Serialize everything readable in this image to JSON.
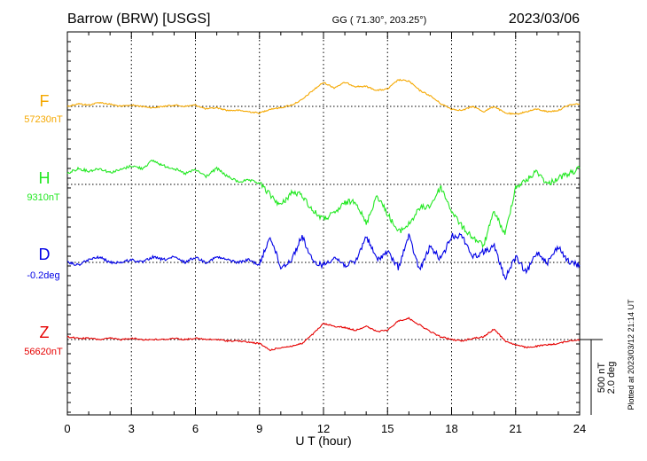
{
  "header": {
    "station": "Barrow (BRW)  [USGS]",
    "coords": "GG ( 71.30°, 203.25°)",
    "date": "2023/03/06"
  },
  "footer": {
    "plotted": "Plotted at 2023/03/12 21:14 UT"
  },
  "scale": {
    "nt": "500 nT",
    "deg": "2.0 deg"
  },
  "chart_data": {
    "type": "line",
    "xlabel": "U T (hour)",
    "xlim": [
      0,
      24
    ],
    "xticks": [
      0,
      3,
      6,
      9,
      12,
      15,
      18,
      21,
      24
    ],
    "xtick_labels": [
      "0",
      "3",
      "6",
      "9",
      "12",
      "15",
      "18",
      "21",
      "24"
    ],
    "grid": true,
    "series": [
      {
        "name": "F",
        "baseline_label": "57230nT",
        "color": "#f5a800",
        "x": [
          0,
          0.5,
          1,
          1.5,
          2,
          2.5,
          3,
          3.5,
          4,
          4.5,
          5,
          5.5,
          6,
          6.5,
          7,
          7.5,
          8,
          8.5,
          9,
          9.5,
          10,
          10.5,
          11,
          11.5,
          12,
          12.5,
          13,
          13.5,
          14,
          14.5,
          15,
          15.5,
          16,
          16.5,
          17,
          17.5,
          18,
          18.5,
          19,
          19.5,
          20,
          20.5,
          21,
          21.5,
          22,
          22.5,
          23,
          23.5,
          24
        ],
        "y": [
          0,
          10,
          5,
          15,
          8,
          0,
          5,
          0,
          -5,
          0,
          5,
          0,
          5,
          -10,
          -5,
          -15,
          -15,
          -20,
          -25,
          -10,
          -5,
          5,
          25,
          60,
          90,
          70,
          90,
          75,
          75,
          60,
          65,
          100,
          95,
          60,
          40,
          10,
          -10,
          -15,
          0,
          -20,
          0,
          -25,
          -30,
          -20,
          -10,
          -20,
          -15,
          5,
          10
        ]
      },
      {
        "name": "H",
        "baseline_label": "9310nT",
        "color": "#22e822",
        "x": [
          0,
          0.5,
          1,
          1.5,
          2,
          2.5,
          3,
          3.5,
          4,
          4.5,
          5,
          5.5,
          6,
          6.5,
          7,
          7.5,
          8,
          8.5,
          9,
          9.5,
          10,
          10.5,
          11,
          11.5,
          12,
          12.5,
          13,
          13.5,
          14,
          14.5,
          15,
          15.5,
          16,
          16.5,
          17,
          17.5,
          18,
          18.5,
          19,
          19.5,
          20,
          20.5,
          21,
          21.5,
          22,
          22.5,
          23,
          23.5,
          24
        ],
        "y": [
          40,
          60,
          50,
          60,
          45,
          55,
          70,
          60,
          90,
          70,
          60,
          40,
          55,
          30,
          60,
          30,
          10,
          15,
          5,
          -40,
          -80,
          -30,
          -40,
          -100,
          -130,
          -110,
          -70,
          -60,
          -150,
          -40,
          -110,
          -180,
          -150,
          -90,
          -80,
          -10,
          -100,
          -160,
          -200,
          -230,
          -100,
          -190,
          -10,
          15,
          50,
          0,
          25,
          40,
          60
        ]
      },
      {
        "name": "D",
        "baseline_label": "-0.2deg",
        "color": "#0000e6",
        "x": [
          0,
          0.5,
          1,
          1.5,
          2,
          2.5,
          3,
          3.5,
          4,
          4.5,
          5,
          5.5,
          6,
          6.5,
          7,
          7.5,
          8,
          8.5,
          9,
          9.5,
          10,
          10.5,
          11,
          11.5,
          12,
          12.5,
          13,
          13.5,
          14,
          14.5,
          15,
          15.5,
          16,
          16.5,
          17,
          17.5,
          18,
          18.5,
          19,
          19.5,
          20,
          20.5,
          21,
          21.5,
          22,
          22.5,
          23,
          23.5,
          24
        ],
        "y": [
          0,
          -0.05,
          0.05,
          0.1,
          0,
          0,
          0.05,
          0,
          0.1,
          0.05,
          0.1,
          0,
          0.1,
          0,
          0.1,
          0.05,
          0,
          0.05,
          -0.05,
          0.5,
          -0.1,
          0.05,
          0.5,
          0,
          -0.05,
          0.1,
          -0.05,
          0,
          0.5,
          0.05,
          0.2,
          -0.1,
          0.5,
          -0.15,
          0.3,
          0.05,
          0.5,
          0.5,
          0.1,
          0.2,
          0.3,
          -0.3,
          0.1,
          -0.2,
          0.2,
          0,
          0.3,
          0,
          -0.05
        ]
      },
      {
        "name": "Z",
        "baseline_label": "56620nT",
        "color": "#e60000",
        "x": [
          0,
          0.5,
          1,
          1.5,
          2,
          2.5,
          3,
          3.5,
          4,
          4.5,
          5,
          5.5,
          6,
          6.5,
          7,
          7.5,
          8,
          8.5,
          9,
          9.5,
          10,
          10.5,
          11,
          11.5,
          12,
          12.5,
          13,
          13.5,
          14,
          14.5,
          15,
          15.5,
          16,
          16.5,
          17,
          17.5,
          18,
          18.5,
          19,
          19.5,
          20,
          20.5,
          21,
          21.5,
          22,
          22.5,
          23,
          23.5,
          24
        ],
        "y": [
          10,
          5,
          5,
          0,
          5,
          0,
          5,
          0,
          0,
          0,
          5,
          0,
          5,
          0,
          0,
          -5,
          -5,
          -10,
          -15,
          -40,
          -30,
          -25,
          -15,
          20,
          60,
          50,
          45,
          35,
          50,
          30,
          35,
          70,
          80,
          55,
          30,
          10,
          0,
          -5,
          5,
          10,
          40,
          -5,
          -20,
          -30,
          -25,
          -20,
          -15,
          -5,
          0
        ]
      }
    ]
  }
}
